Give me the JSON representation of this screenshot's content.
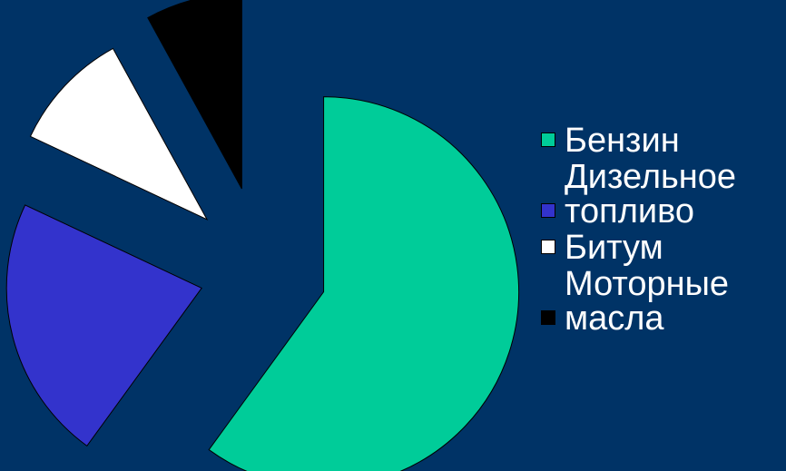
{
  "chart_data": {
    "type": "pie",
    "title": "",
    "series": [
      {
        "name": "Бензин",
        "value": 60,
        "color": "#00CC99"
      },
      {
        "name": "Дизельное топливо",
        "value": 22,
        "color": "#3333CC"
      },
      {
        "name": "Битум",
        "value": 10,
        "color": "#FFFFFF"
      },
      {
        "name": "Моторные масла",
        "value": 8,
        "color": "#000000"
      }
    ],
    "legend": "right"
  }
}
